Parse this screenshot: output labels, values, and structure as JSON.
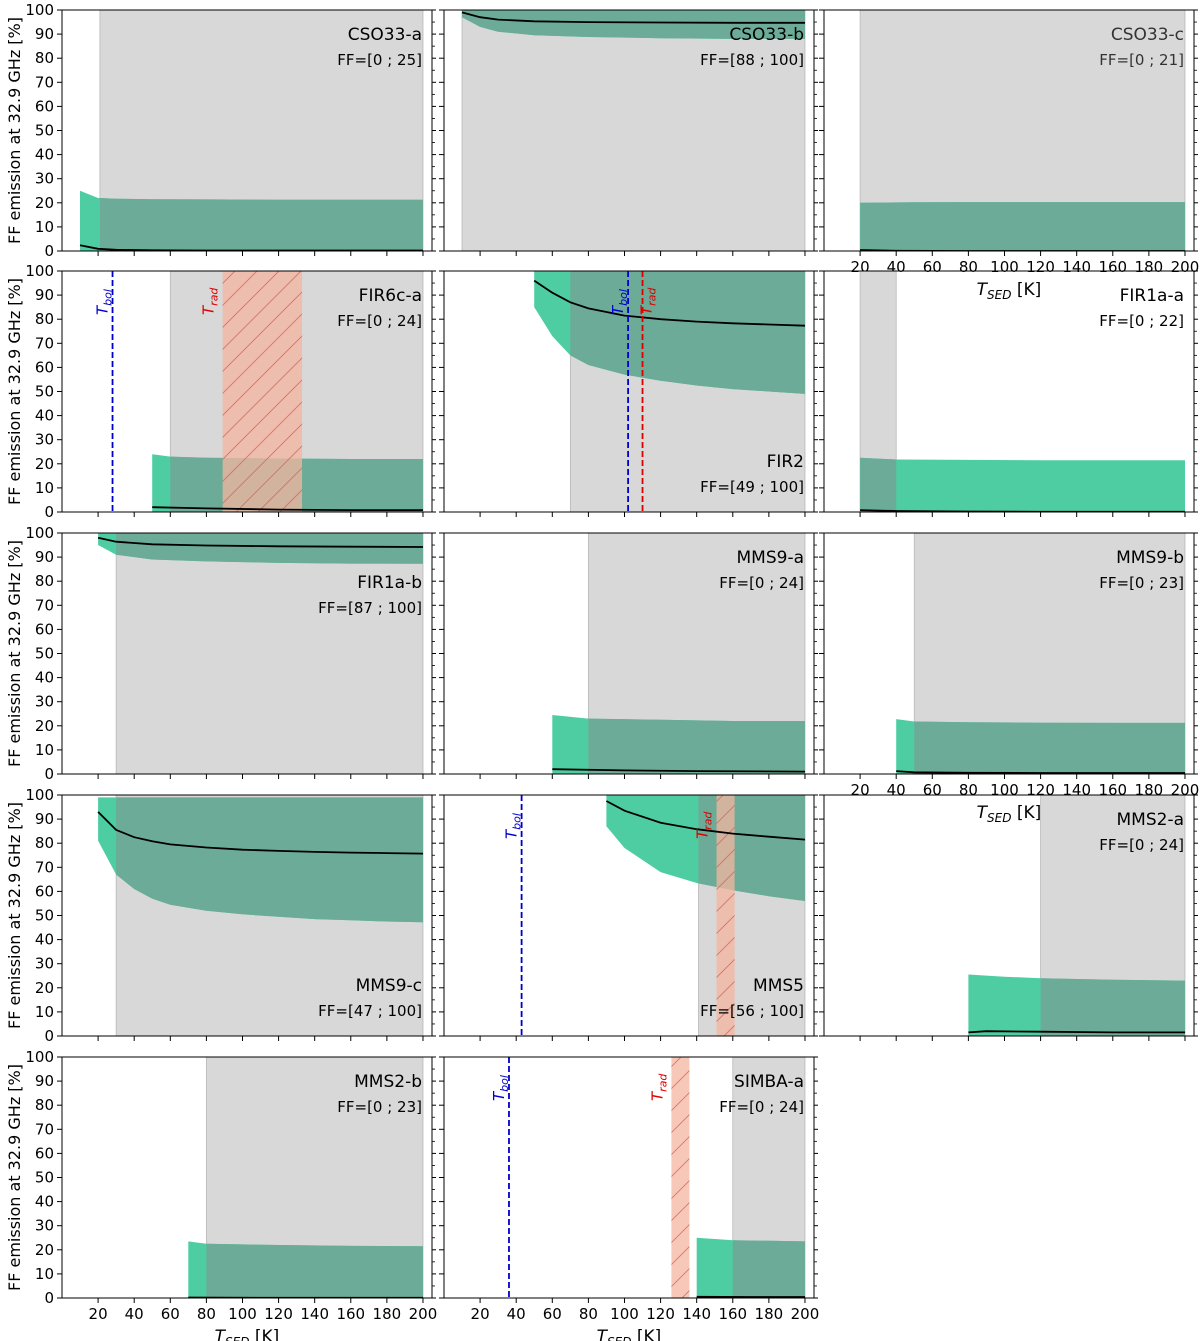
{
  "figure": {
    "ylabel": "FF emission at 32.9 GHz [%]",
    "xlabel_main": "T",
    "xlabel_sub": "SED",
    "xlabel_unit": " [K]",
    "colors": {
      "ff_band": "#4ecda2",
      "overlap_band": "#6bab97",
      "gray_region": "#d8d8d8",
      "rad_band": "#f4b6a0",
      "rad_hatch": "#e05a50",
      "tbol_line": "#0000cc",
      "trad_line": "#dd0000",
      "median_line": "#000000"
    }
  },
  "chart_data": [
    {
      "type": "area",
      "name": "CSO33-a",
      "ff": "FF=[0 ; 25]",
      "label_pos": "top-right",
      "xlim": [
        0,
        205
      ],
      "ylim": [
        0,
        100
      ],
      "yticks": [
        0,
        10,
        20,
        30,
        40,
        50,
        60,
        70,
        80,
        90,
        100
      ],
      "gray_range": [
        21,
        200
      ],
      "band_x": [
        10,
        20,
        30,
        50,
        80,
        120,
        160,
        200
      ],
      "band_lower": [
        0,
        0,
        0,
        0,
        0,
        0,
        0,
        0
      ],
      "band_upper": [
        25,
        22,
        21.7,
        21.5,
        21.4,
        21.3,
        21.3,
        21.3
      ],
      "median_x": [
        10,
        20,
        30,
        50,
        80,
        120,
        160,
        200
      ],
      "median_y": [
        2.4,
        0.9,
        0.5,
        0.3,
        0.2,
        0.2,
        0.2,
        0.2
      ]
    },
    {
      "type": "area",
      "name": "CSO33-b",
      "ff": "FF=[88 ; 100]",
      "label_pos": "top-right",
      "xlim": [
        0,
        205
      ],
      "ylim": [
        0,
        100
      ],
      "yticks": [
        0,
        10,
        20,
        30,
        40,
        50,
        60,
        70,
        80,
        90,
        100
      ],
      "gray_range": [
        10,
        200
      ],
      "band_x": [
        10,
        20,
        30,
        50,
        80,
        120,
        160,
        200
      ],
      "band_lower": [
        97,
        93,
        91,
        89.5,
        88.8,
        88.3,
        88,
        88
      ],
      "band_upper": [
        100,
        100,
        100,
        100,
        100,
        100,
        100,
        100
      ],
      "median_x": [
        10,
        20,
        30,
        50,
        80,
        120,
        160,
        200
      ],
      "median_y": [
        99,
        97,
        96,
        95.3,
        95,
        94.8,
        94.7,
        94.7
      ]
    },
    {
      "type": "area",
      "name": "CSO33-c",
      "ff": "FF=[0 ; 21]",
      "label_pos": "top-right",
      "xlim": [
        0,
        205
      ],
      "ylim": [
        0,
        100
      ],
      "yticks": [
        0,
        10,
        20,
        30,
        40,
        50,
        60,
        70,
        80,
        90,
        100
      ],
      "xticks": [
        20,
        40,
        60,
        80,
        100,
        120,
        140,
        160,
        180,
        200
      ],
      "gray_range": [
        20,
        200
      ],
      "band_x": [
        20,
        50,
        80,
        120,
        160,
        200
      ],
      "band_lower": [
        0,
        0,
        0,
        0,
        0,
        0
      ],
      "band_upper": [
        20,
        20.2,
        20.3,
        20.3,
        20.3,
        20.3
      ],
      "median_x": [
        20,
        40,
        80,
        120,
        160,
        200
      ],
      "median_y": [
        0.4,
        0.1,
        0,
        0,
        0,
        0
      ]
    },
    {
      "type": "area",
      "name": "FIR6c-a",
      "ff": "FF=[0 ; 24]",
      "label_pos": "top-right",
      "xlim": [
        0,
        205
      ],
      "ylim": [
        0,
        100
      ],
      "yticks": [
        0,
        10,
        20,
        30,
        40,
        50,
        60,
        70,
        80,
        90,
        100
      ],
      "gray_range": [
        60,
        200
      ],
      "band_x": [
        50,
        60,
        80,
        120,
        160,
        200
      ],
      "band_lower": [
        0,
        0,
        0,
        0,
        0,
        0
      ],
      "band_upper": [
        24,
        23,
        22.5,
        22.2,
        22,
        22
      ],
      "median_x": [
        50,
        80,
        120,
        160,
        200
      ],
      "median_y": [
        2,
        1.5,
        1,
        0.8,
        0.8
      ],
      "tbol": 28,
      "trad_range": [
        89,
        133
      ]
    },
    {
      "type": "area",
      "name": "FIR2",
      "ff": "FF=[49 ; 100]",
      "label_pos": "bottom-right",
      "xlim": [
        0,
        205
      ],
      "ylim": [
        0,
        100
      ],
      "yticks": [
        0,
        10,
        20,
        30,
        40,
        50,
        60,
        70,
        80,
        90,
        100
      ],
      "gray_range": [
        70,
        200
      ],
      "band_x": [
        50,
        60,
        70,
        80,
        100,
        120,
        140,
        160,
        180,
        200
      ],
      "band_lower": [
        85,
        73,
        65,
        61,
        57,
        54.5,
        52.5,
        51,
        50,
        49
      ],
      "band_upper": [
        100,
        100,
        100,
        100,
        100,
        100,
        100,
        100,
        100,
        100
      ],
      "median_x": [
        50,
        60,
        70,
        80,
        100,
        120,
        140,
        160,
        180,
        200
      ],
      "median_y": [
        96,
        91,
        87,
        84.5,
        81.5,
        80,
        79,
        78.3,
        77.8,
        77.3
      ],
      "tbol": 102,
      "trad_line": 110
    },
    {
      "type": "area",
      "name": "FIR1a-a",
      "ff": "FF=[0 ; 22]",
      "label_pos": "top-right",
      "xlim": [
        0,
        205
      ],
      "ylim": [
        0,
        100
      ],
      "yticks": [
        0,
        10,
        20,
        30,
        40,
        50,
        60,
        70,
        80,
        90,
        100
      ],
      "gray_range": [
        20,
        40
      ],
      "band_x": [
        20,
        40,
        80,
        120,
        160,
        200
      ],
      "band_lower": [
        0,
        0,
        0,
        0,
        0,
        0
      ],
      "band_upper": [
        22.5,
        21.8,
        21.6,
        21.5,
        21.5,
        21.5
      ],
      "median_x": [
        20,
        40,
        80,
        120,
        160,
        200
      ],
      "median_y": [
        0.8,
        0.4,
        0.2,
        0.1,
        0.1,
        0.1
      ]
    },
    {
      "type": "area",
      "name": "FIR1a-b",
      "ff": "FF=[87 ; 100]",
      "label_pos": "upper-mid-right",
      "xlim": [
        0,
        205
      ],
      "ylim": [
        0,
        100
      ],
      "yticks": [
        0,
        10,
        20,
        30,
        40,
        50,
        60,
        70,
        80,
        90,
        100
      ],
      "gray_range": [
        30,
        200
      ],
      "band_x": [
        20,
        30,
        50,
        80,
        120,
        160,
        200
      ],
      "band_lower": [
        95,
        91,
        89,
        88.2,
        87.6,
        87.3,
        87.2
      ],
      "band_upper": [
        100,
        100,
        100,
        100,
        100,
        100,
        100
      ],
      "median_x": [
        20,
        30,
        50,
        80,
        120,
        160,
        200
      ],
      "median_y": [
        98,
        96.4,
        95.3,
        94.8,
        94.5,
        94.3,
        94.2
      ]
    },
    {
      "type": "area",
      "name": "MMS9-a",
      "ff": "FF=[0 ; 24]",
      "label_pos": "top-right",
      "xlim": [
        0,
        205
      ],
      "ylim": [
        0,
        100
      ],
      "yticks": [
        0,
        10,
        20,
        30,
        40,
        50,
        60,
        70,
        80,
        90,
        100
      ],
      "gray_range": [
        80,
        200
      ],
      "band_x": [
        60,
        80,
        120,
        160,
        200
      ],
      "band_lower": [
        0,
        0,
        0,
        0,
        0
      ],
      "band_upper": [
        24.5,
        23,
        22.5,
        22,
        22
      ],
      "median_x": [
        60,
        100,
        140,
        200
      ],
      "median_y": [
        2,
        1.5,
        1.2,
        1
      ]
    },
    {
      "type": "area",
      "name": "MMS9-b",
      "ff": "FF=[0 ; 23]",
      "label_pos": "top-right",
      "xlim": [
        0,
        205
      ],
      "ylim": [
        0,
        100
      ],
      "yticks": [
        0,
        10,
        20,
        30,
        40,
        50,
        60,
        70,
        80,
        90,
        100
      ],
      "xticks": [
        20,
        40,
        60,
        80,
        100,
        120,
        140,
        160,
        180,
        200
      ],
      "gray_range": [
        50,
        200
      ],
      "band_x": [
        40,
        50,
        80,
        120,
        160,
        200
      ],
      "band_lower": [
        0,
        0,
        0,
        0,
        0,
        0
      ],
      "band_upper": [
        22.8,
        21.8,
        21.5,
        21.3,
        21.2,
        21.2
      ],
      "median_x": [
        40,
        50,
        80,
        120,
        160,
        200
      ],
      "median_y": [
        1.2,
        0.7,
        0.5,
        0.4,
        0.4,
        0.4
      ]
    },
    {
      "type": "area",
      "name": "MMS9-c",
      "ff": "FF=[47 ; 100]",
      "label_pos": "bottom-right",
      "xlim": [
        0,
        205
      ],
      "ylim": [
        0,
        100
      ],
      "yticks": [
        0,
        10,
        20,
        30,
        40,
        50,
        60,
        70,
        80,
        90,
        100
      ],
      "gray_range": [
        30,
        200
      ],
      "band_x": [
        20,
        30,
        40,
        50,
        60,
        80,
        100,
        120,
        140,
        160,
        180,
        200
      ],
      "band_lower": [
        81,
        67,
        61,
        57,
        54.5,
        52,
        50.5,
        49.5,
        48.5,
        48,
        47.5,
        47.2
      ],
      "band_upper": [
        99,
        99,
        99,
        99,
        99,
        99,
        99,
        99,
        99,
        99,
        99,
        99
      ],
      "median_x": [
        20,
        30,
        40,
        50,
        60,
        80,
        100,
        120,
        140,
        160,
        180,
        200
      ],
      "median_y": [
        93,
        85.5,
        82.5,
        80.8,
        79.5,
        78.2,
        77.3,
        76.8,
        76.4,
        76.1,
        75.9,
        75.7
      ]
    },
    {
      "type": "area",
      "name": "MMS5",
      "ff": "FF=[56 ; 100]",
      "label_pos": "bottom-right",
      "xlim": [
        0,
        205
      ],
      "ylim": [
        0,
        100
      ],
      "yticks": [
        0,
        10,
        20,
        30,
        40,
        50,
        60,
        70,
        80,
        90,
        100
      ],
      "gray_range": [
        141,
        200
      ],
      "band_x": [
        90,
        100,
        120,
        140,
        160,
        180,
        200
      ],
      "band_lower": [
        87,
        78,
        68,
        63.5,
        60.5,
        58,
        56
      ],
      "band_upper": [
        100,
        100,
        100,
        100,
        100,
        100,
        100
      ],
      "median_x": [
        90,
        100,
        120,
        140,
        160,
        180,
        200
      ],
      "median_y": [
        97.5,
        93.5,
        88.5,
        85.8,
        84,
        82.7,
        81.5
      ],
      "tbol": 43,
      "trad_range": [
        151,
        161
      ]
    },
    {
      "type": "area",
      "name": "MMS2-a",
      "ff": "FF=[0 ; 24]",
      "label_pos": "top-right",
      "xlim": [
        0,
        205
      ],
      "ylim": [
        0,
        100
      ],
      "yticks": [
        0,
        10,
        20,
        30,
        40,
        50,
        60,
        70,
        80,
        90,
        100
      ],
      "gray_range": [
        120,
        200
      ],
      "band_x": [
        80,
        100,
        120,
        160,
        200
      ],
      "band_lower": [
        0,
        0,
        0,
        0,
        0
      ],
      "band_upper": [
        25.5,
        24.6,
        24,
        23.3,
        23
      ],
      "median_x": [
        80,
        90,
        120,
        160,
        200
      ],
      "median_y": [
        1.5,
        2,
        1.8,
        1.5,
        1.5
      ]
    },
    {
      "type": "area",
      "name": "MMS2-b",
      "ff": "FF=[0 ; 23]",
      "label_pos": "top-right",
      "xlim": [
        0,
        205
      ],
      "ylim": [
        0,
        100
      ],
      "yticks": [
        0,
        10,
        20,
        30,
        40,
        50,
        60,
        70,
        80,
        90,
        100
      ],
      "xticks": [
        20,
        40,
        60,
        80,
        100,
        120,
        140,
        160,
        180,
        200
      ],
      "gray_range": [
        80,
        200
      ],
      "band_x": [
        70,
        80,
        120,
        160,
        200
      ],
      "band_lower": [
        0,
        0,
        0,
        0,
        0
      ],
      "band_upper": [
        23.5,
        22.5,
        22,
        21.6,
        21.5
      ],
      "median_x": [
        70,
        120,
        200
      ],
      "median_y": [
        0.2,
        0.1,
        0.1
      ]
    },
    {
      "type": "area",
      "name": "SIMBA-a",
      "ff": "FF=[0 ; 24]",
      "label_pos": "top-right",
      "xlim": [
        0,
        205
      ],
      "ylim": [
        0,
        100
      ],
      "yticks": [
        0,
        10,
        20,
        30,
        40,
        50,
        60,
        70,
        80,
        90,
        100
      ],
      "xticks": [
        20,
        40,
        60,
        80,
        100,
        120,
        140,
        160,
        180,
        200
      ],
      "gray_range": [
        160,
        200
      ],
      "band_x": [
        140,
        160,
        200
      ],
      "band_lower": [
        0,
        0,
        0
      ],
      "band_upper": [
        25,
        24,
        23.5
      ],
      "median_x": [
        140,
        170,
        200
      ],
      "median_y": [
        0.5,
        0.4,
        0.4
      ],
      "tbol": 36,
      "trad_range": [
        126,
        136
      ]
    }
  ]
}
